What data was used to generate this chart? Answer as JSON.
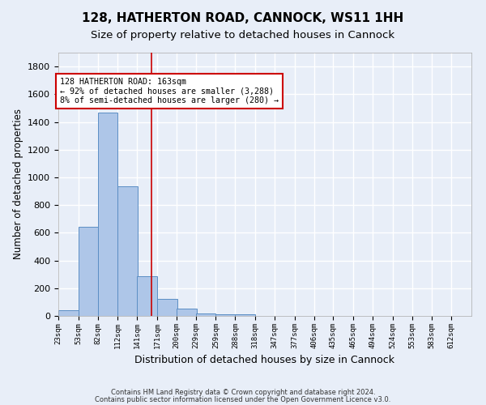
{
  "title": "128, HATHERTON ROAD, CANNOCK, WS11 1HH",
  "subtitle": "Size of property relative to detached houses in Cannock",
  "xlabel": "Distribution of detached houses by size in Cannock",
  "ylabel": "Number of detached properties",
  "bin_labels": [
    "23sqm",
    "53sqm",
    "82sqm",
    "112sqm",
    "141sqm",
    "171sqm",
    "200sqm",
    "229sqm",
    "259sqm",
    "288sqm",
    "318sqm",
    "347sqm",
    "377sqm",
    "406sqm",
    "435sqm",
    "465sqm",
    "494sqm",
    "524sqm",
    "553sqm",
    "583sqm",
    "612sqm"
  ],
  "bin_edges": [
    23,
    53,
    82,
    112,
    141,
    171,
    200,
    229,
    259,
    288,
    318,
    347,
    377,
    406,
    435,
    465,
    494,
    524,
    553,
    583,
    612
  ],
  "bar_values": [
    40,
    645,
    1470,
    935,
    285,
    125,
    55,
    20,
    10,
    10,
    0,
    0,
    0,
    0,
    0,
    0,
    0,
    0,
    0,
    0
  ],
  "bar_color": "#aec6e8",
  "bar_edgecolor": "#5b8ec4",
  "vline_x": 163,
  "vline_color": "#cc0000",
  "ylim": [
    0,
    1900
  ],
  "yticks": [
    0,
    200,
    400,
    600,
    800,
    1000,
    1200,
    1400,
    1600,
    1800
  ],
  "annotation_text": "128 HATHERTON ROAD: 163sqm\n← 92% of detached houses are smaller (3,288)\n8% of semi-detached houses are larger (280) →",
  "annotation_box_color": "#cc0000",
  "footer_line1": "Contains HM Land Registry data © Crown copyright and database right 2024.",
  "footer_line2": "Contains public sector information licensed under the Open Government Licence v3.0.",
  "bg_color": "#e8eef8",
  "plot_bg_color": "#e8eef8",
  "grid_color": "#ffffff",
  "title_fontsize": 11,
  "subtitle_fontsize": 9.5,
  "ylabel_fontsize": 8.5,
  "xlabel_fontsize": 9
}
